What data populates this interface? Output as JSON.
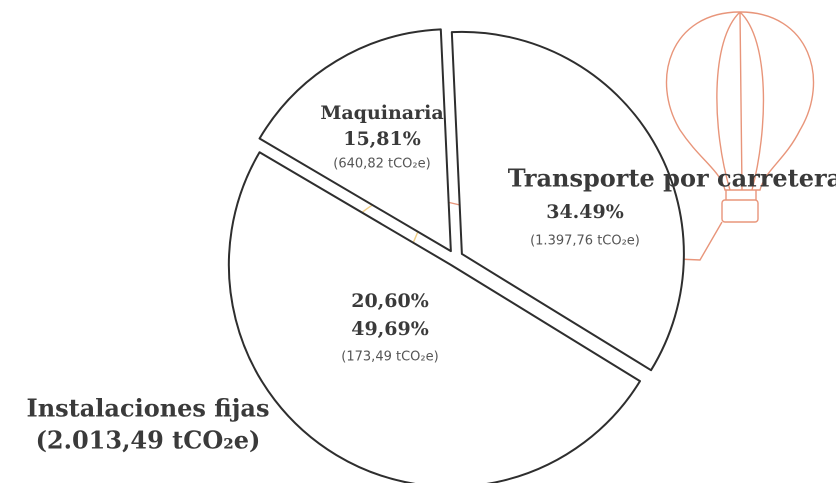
{
  "chart_data": {
    "type": "pie",
    "categories": [
      "Maquinaria",
      "Transporte por carretera",
      "Instalaciones fijas"
    ],
    "values": [
      15.81,
      34.49,
      49.69
    ],
    "value_labels": [
      "15,81%",
      "34.49%",
      "49,69%"
    ],
    "annotations": [
      "(640,82 tCO₂e)",
      "(1.397,76 tCO₂e)",
      "20,60%",
      "(173,49 tCO₂e)",
      "(2.013,49 tCO₂e)"
    ]
  }
}
